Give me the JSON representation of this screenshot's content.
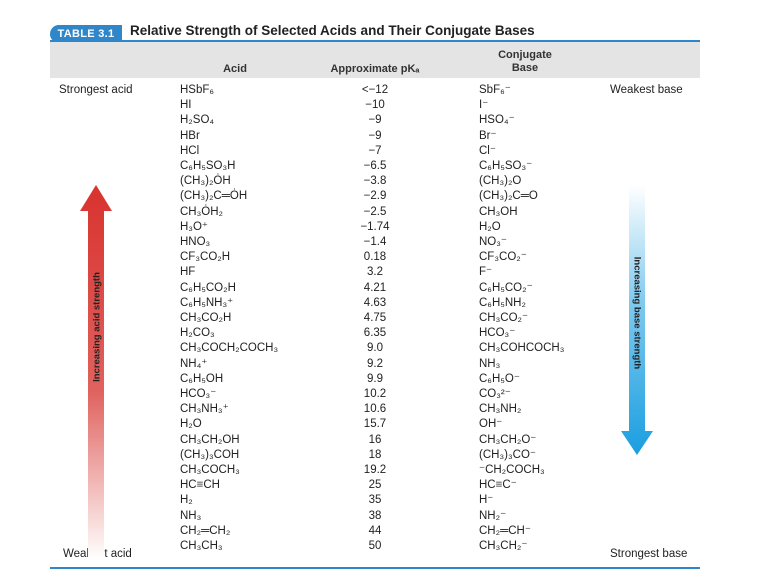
{
  "table": {
    "badge": "TABLE 3.1",
    "title": "Relative Strength of Selected Acids and Their Conjugate Bases",
    "headers": {
      "acid": "Acid",
      "pka": "Approximate pKₐ",
      "base_line1": "Conjugate",
      "base_line2": "Base"
    },
    "labels": {
      "strongest_acid": "Strongest acid",
      "weakest_acid": "Weakest acid",
      "weakest_base": "Weakest base",
      "strongest_base": "Strongest base",
      "increasing_acid": "Increasing acid strength",
      "increasing_base": "Increasing base strength"
    },
    "colors": {
      "accent": "#2f86c8",
      "acid_arrow": "#d8322e",
      "base_arrow": "#1a9ee0",
      "header_bg": "#e4e4e4"
    },
    "rows": [
      {
        "acid": "HSbF₆",
        "pka": "<−12",
        "base": "SbF₆⁻"
      },
      {
        "acid": "HI",
        "pka": "−10",
        "base": "I⁻"
      },
      {
        "acid": "H₂SO₄",
        "pka": "−9",
        "base": "HSO₄⁻"
      },
      {
        "acid": "HBr",
        "pka": "−9",
        "base": "Br⁻"
      },
      {
        "acid": "HCl",
        "pka": "−7",
        "base": "Cl⁻"
      },
      {
        "acid": "C₆H₅SO₃H",
        "pka": "−6.5",
        "base": "C₆H₅SO₃⁻"
      },
      {
        "acid": "(CH₃)₂ȮH",
        "pka": "−3.8",
        "base": "(CH₃)₂O"
      },
      {
        "acid": "(CH₃)₂C═ȮH",
        "pka": "−2.9",
        "base": "(CH₃)₂C═O"
      },
      {
        "acid": "CH₃ȮH₂",
        "pka": "−2.5",
        "base": "CH₃OH"
      },
      {
        "acid": "H₃O⁺",
        "pka": "−1.74",
        "base": "H₂O"
      },
      {
        "acid": "HNO₃",
        "pka": "−1.4",
        "base": "NO₃⁻"
      },
      {
        "acid": "CF₃CO₂H",
        "pka": "0.18",
        "base": "CF₃CO₂⁻"
      },
      {
        "acid": "HF",
        "pka": "3.2",
        "base": "F⁻"
      },
      {
        "acid": "C₆H₅CO₂H",
        "pka": "4.21",
        "base": "C₆H₅CO₂⁻"
      },
      {
        "acid": "C₆H₅NH₃⁺",
        "pka": "4.63",
        "base": "C₆H₅NH₂"
      },
      {
        "acid": "CH₃CO₂H",
        "pka": "4.75",
        "base": "CH₃CO₂⁻"
      },
      {
        "acid": "H₂CO₃",
        "pka": "6.35",
        "base": "HCO₃⁻"
      },
      {
        "acid": "CH₃COCH₂COCH₃",
        "pka": "9.0",
        "base": "CH₃COHCOCH₃"
      },
      {
        "acid": "NH₄⁺",
        "pka": "9.2",
        "base": "NH₃"
      },
      {
        "acid": "C₆H₅OH",
        "pka": "9.9",
        "base": "C₆H₅O⁻"
      },
      {
        "acid": "HCO₃⁻",
        "pka": "10.2",
        "base": "CO₃²⁻"
      },
      {
        "acid": "CH₃NH₃⁺",
        "pka": "10.6",
        "base": "CH₃NH₂"
      },
      {
        "acid": "H₂O",
        "pka": "15.7",
        "base": "OH⁻"
      },
      {
        "acid": "CH₃CH₂OH",
        "pka": "16",
        "base": "CH₃CH₂O⁻"
      },
      {
        "acid": "(CH₃)₃COH",
        "pka": "18",
        "base": "(CH₃)₃CO⁻"
      },
      {
        "acid": "CH₃COCH₃",
        "pka": "19.2",
        "base": "⁻CH₂COCH₃"
      },
      {
        "acid": "HC≡CH",
        "pka": "25",
        "base": "HC≡C⁻"
      },
      {
        "acid": "H₂",
        "pka": "35",
        "base": "H⁻"
      },
      {
        "acid": "NH₃",
        "pka": "38",
        "base": "NH₂⁻"
      },
      {
        "acid": "CH₂═CH₂",
        "pka": "44",
        "base": "CH₂═CH⁻"
      },
      {
        "acid": "CH₃CH₃",
        "pka": "50",
        "base": "CH₃CH₂⁻"
      }
    ]
  }
}
